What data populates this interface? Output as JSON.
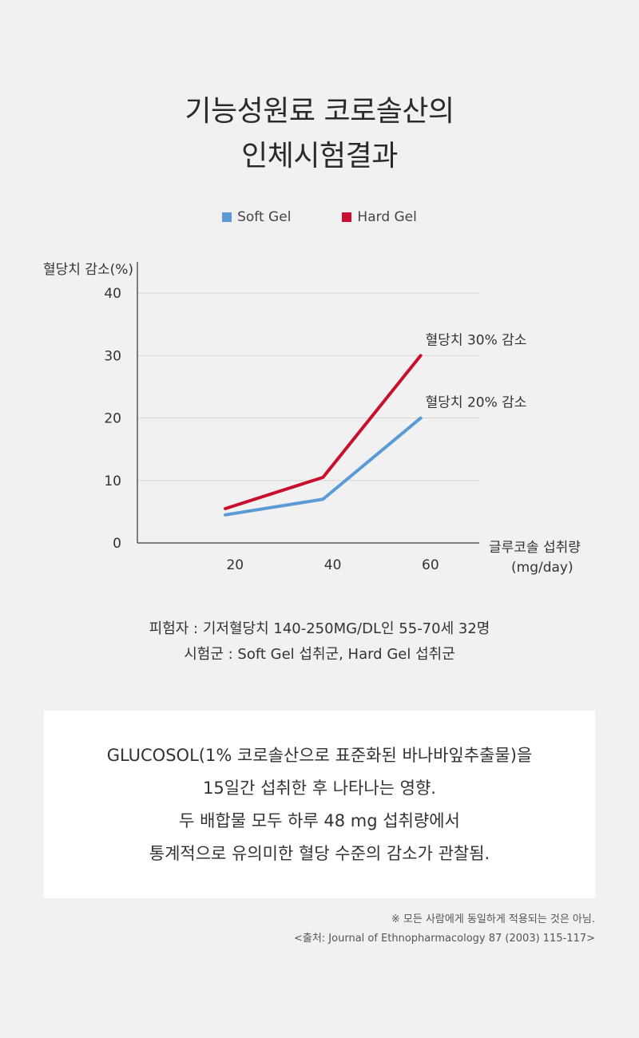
{
  "title": {
    "line1": "기능성원료 코로솔산의",
    "line2": "인체시험결과"
  },
  "colors": {
    "soft_gel": "#5b9bd5",
    "hard_gel": "#c8102e"
  },
  "chart_data": {
    "type": "line",
    "ylabel": "혈당치 감소(%)",
    "xlabel_line1": "글루코솔 섭취량",
    "xlabel_line2": "(mg/day)",
    "x_ticks": [
      "20",
      "40",
      "60"
    ],
    "y_ticks": [
      "0",
      "10",
      "20",
      "30",
      "40"
    ],
    "xlim": [
      0,
      70
    ],
    "ylim": [
      0,
      45
    ],
    "grid": true,
    "legend_position": "top-center",
    "series": [
      {
        "name": "Soft Gel",
        "color": "#5b9bd5",
        "x": [
          18,
          38,
          58
        ],
        "y": [
          4.5,
          7,
          20
        ],
        "end_label": "혈당치 20% 감소"
      },
      {
        "name": "Hard Gel",
        "color": "#c8102e",
        "x": [
          18,
          38,
          58
        ],
        "y": [
          5.5,
          10.5,
          30
        ],
        "end_label": "혈당치 30% 감소"
      }
    ]
  },
  "caption": {
    "line1": "피험자 : 기저혈당치 140-250MG/DL인 55-70세 32명",
    "line2": "시험군 : Soft Gel 섭취군, Hard Gel 섭취군"
  },
  "summary": {
    "line1": "GLUCOSOL(1% 코로솔산으로 표준화된 바나바잎추출물)을",
    "line2": "15일간 섭취한 후 나타나는 영향.",
    "line3": "두 배합물 모두 하루 48 mg 섭취량에서",
    "line4": "통계적으로 유의미한 혈당 수준의 감소가 관찰됨."
  },
  "footnote": {
    "note": "※ 모든 사람에게 동일하게 적용되는 것은 아님.",
    "source": "<출처: Journal of Ethnopharmacology 87 (2003) 115-117>"
  }
}
